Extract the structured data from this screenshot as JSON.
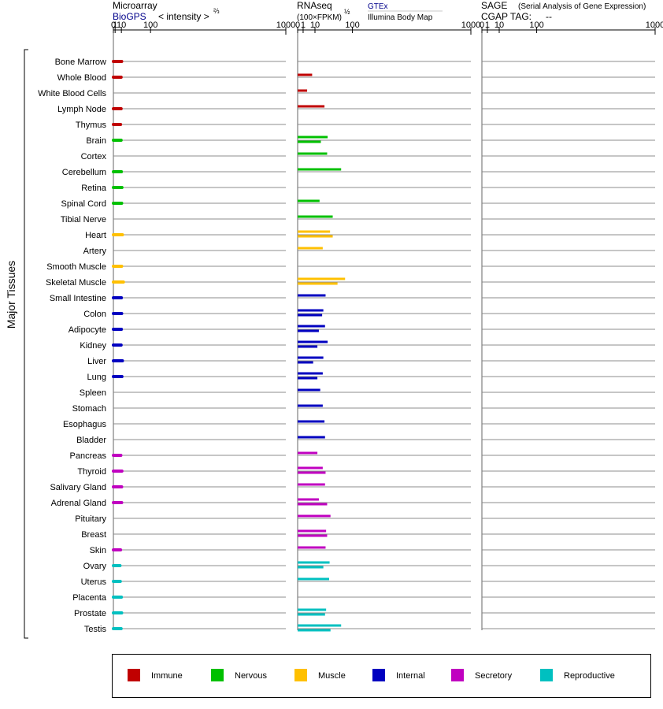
{
  "headers": {
    "microarray": {
      "title": "Microarray",
      "source": "BioGPS",
      "unit": "< intensity >",
      "unit_exp": "⅔"
    },
    "rnaseq": {
      "title": "RNAseq",
      "unit": "(100×FPKM)",
      "unit_exp": "½",
      "source1": "GTEx",
      "source2": "Illumina Body Map"
    },
    "sage": {
      "title": "SAGE",
      "subtitle": "(Serial Analysis of Gene Expression)",
      "tag_label": "CGAP TAG:",
      "tag_value": "--"
    }
  },
  "y_group_label": "Major Tissues",
  "colors": {
    "Immune": "#c00000",
    "Nervous": "#00c000",
    "Muscle": "#ffc000",
    "Internal": "#0000c0",
    "Secretory": "#c000c0",
    "Reproductive": "#00c0c0",
    "grid": "#808080"
  },
  "chart_data": {
    "type": "bar",
    "orientation": "horizontal",
    "x_scale": "power",
    "x_ticks": [
      0,
      1,
      10,
      100,
      1000
    ],
    "x_tick_labels": [
      "0",
      "1",
      "10",
      "100",
      "1000"
    ],
    "xlim": [
      0,
      1000
    ],
    "legend": [
      "Immune",
      "Nervous",
      "Muscle",
      "Internal",
      "Secretory",
      "Reproductive"
    ],
    "legend_position": "bottom",
    "tissues": [
      {
        "name": "Bone Marrow",
        "group": "Immune",
        "microarray": 10.5,
        "rnaseq": []
      },
      {
        "name": "Whole Blood",
        "group": "Immune",
        "microarray": 9.5,
        "rnaseq": [
          7
        ]
      },
      {
        "name": "White Blood Cells",
        "group": "Immune",
        "microarray": null,
        "rnaseq": [
          3
        ]
      },
      {
        "name": "Lymph Node",
        "group": "Immune",
        "microarray": 9.5,
        "rnaseq": [
          24
        ]
      },
      {
        "name": "Thymus",
        "group": "Immune",
        "microarray": 8.5,
        "rnaseq": []
      },
      {
        "name": "Brain",
        "group": "Nervous",
        "microarray": 9.5,
        "rnaseq": [
          30,
          18
        ]
      },
      {
        "name": "Cortex",
        "group": "Nervous",
        "microarray": null,
        "rnaseq": [
          29
        ]
      },
      {
        "name": "Cerebellum",
        "group": "Nervous",
        "microarray": 10,
        "rnaseq": [
          63
        ]
      },
      {
        "name": "Retina",
        "group": "Nervous",
        "microarray": 11,
        "rnaseq": []
      },
      {
        "name": "Spinal Cord",
        "group": "Nervous",
        "microarray": 10.5,
        "rnaseq": [
          16
        ]
      },
      {
        "name": "Tibial Nerve",
        "group": "Nervous",
        "microarray": null,
        "rnaseq": [
          41
        ]
      },
      {
        "name": "Heart",
        "group": "Muscle",
        "microarray": 12,
        "rnaseq": [
          35,
          41
        ]
      },
      {
        "name": "Artery",
        "group": "Muscle",
        "microarray": null,
        "rnaseq": [
          21
        ]
      },
      {
        "name": "Smooth Muscle",
        "group": "Muscle",
        "microarray": 10.5,
        "rnaseq": []
      },
      {
        "name": "Skeletal Muscle",
        "group": "Muscle",
        "microarray": 14,
        "rnaseq": [
          75,
          53
        ]
      },
      {
        "name": "Small Intestine",
        "group": "Internal",
        "microarray": 10,
        "rnaseq": [
          26
        ]
      },
      {
        "name": "Colon",
        "group": "Internal",
        "microarray": 10.5,
        "rnaseq": [
          22,
          20
        ]
      },
      {
        "name": "Adipocyte",
        "group": "Internal",
        "microarray": 10,
        "rnaseq": [
          25,
          15
        ]
      },
      {
        "name": "Kidney",
        "group": "Internal",
        "microarray": 9.5,
        "rnaseq": [
          30,
          13
        ]
      },
      {
        "name": "Liver",
        "group": "Internal",
        "microarray": 12,
        "rnaseq": [
          22,
          8
        ]
      },
      {
        "name": "Lung",
        "group": "Internal",
        "microarray": 11,
        "rnaseq": [
          21,
          13
        ]
      },
      {
        "name": "Spleen",
        "group": "Internal",
        "microarray": null,
        "rnaseq": [
          17
        ]
      },
      {
        "name": "Stomach",
        "group": "Internal",
        "microarray": null,
        "rnaseq": [
          21
        ]
      },
      {
        "name": "Esophagus",
        "group": "Internal",
        "microarray": null,
        "rnaseq": [
          24
        ]
      },
      {
        "name": "Bladder",
        "group": "Internal",
        "microarray": null,
        "rnaseq": [
          25
        ]
      },
      {
        "name": "Pancreas",
        "group": "Secretory",
        "microarray": 9,
        "rnaseq": [
          13
        ]
      },
      {
        "name": "Thyroid",
        "group": "Secretory",
        "microarray": 11,
        "rnaseq": [
          21,
          26
        ]
      },
      {
        "name": "Salivary Gland",
        "group": "Secretory",
        "microarray": 10.5,
        "rnaseq": [
          25
        ]
      },
      {
        "name": "Adrenal Gland",
        "group": "Secretory",
        "microarray": 10.5,
        "rnaseq": [
          15,
          29
        ]
      },
      {
        "name": "Pituitary",
        "group": "Secretory",
        "microarray": null,
        "rnaseq": [
          36
        ]
      },
      {
        "name": "Breast",
        "group": "Secretory",
        "microarray": null,
        "rnaseq": [
          27,
          29
        ]
      },
      {
        "name": "Skin",
        "group": "Secretory",
        "microarray": 8.5,
        "rnaseq": [
          26
        ]
      },
      {
        "name": "Ovary",
        "group": "Reproductive",
        "microarray": 7.5,
        "rnaseq": [
          34,
          22
        ]
      },
      {
        "name": "Uterus",
        "group": "Reproductive",
        "microarray": 8,
        "rnaseq": [
          33
        ]
      },
      {
        "name": "Placenta",
        "group": "Reproductive",
        "microarray": 10,
        "rnaseq": []
      },
      {
        "name": "Prostate",
        "group": "Reproductive",
        "microarray": 10.5,
        "rnaseq": [
          27,
          25
        ]
      },
      {
        "name": "Testis",
        "group": "Reproductive",
        "microarray": 9.5,
        "rnaseq": [
          63,
          36
        ]
      }
    ]
  }
}
